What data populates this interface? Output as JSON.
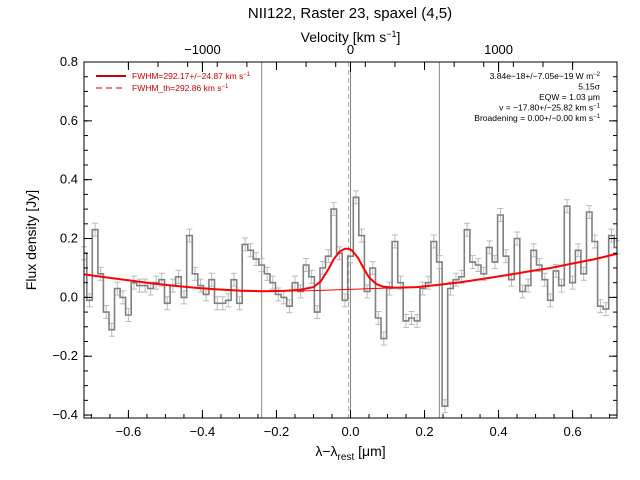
{
  "chart_data": {
    "type": "line",
    "title": "NII122, Raster 23, spaxel (4,5)",
    "xlabel": "λ−λrest [μm]",
    "xlabel_parts": {
      "main": "λ−λ",
      "sub": "rest",
      "unit": " [μm]"
    },
    "ylabel": "Flux density [Jy]",
    "top_xlabel": "Velocity [km s⁻¹]",
    "top_xlabel_parts": {
      "main": "Velocity [km s",
      "sup": "−1",
      "end": "]"
    },
    "xlim": [
      -0.72,
      0.72
    ],
    "ylim": [
      -0.41,
      0.8
    ],
    "x_ticks": [
      -0.6,
      -0.4,
      -0.2,
      0.0,
      0.2,
      0.4,
      0.6
    ],
    "x_tick_labels": [
      "−0.6",
      "−0.4",
      "−0.2",
      "0.0",
      "0.2",
      "0.4",
      "0.6"
    ],
    "y_ticks": [
      -0.4,
      -0.2,
      0.0,
      0.2,
      0.4,
      0.6,
      0.8
    ],
    "y_tick_labels": [
      "−0.4",
      "−0.2",
      "0.0",
      "0.2",
      "0.4",
      "0.6",
      "0.8"
    ],
    "top_x_ticks_um": [
      -0.4,
      0.0,
      0.4
    ],
    "top_x_tick_labels": [
      "−1000",
      "0",
      "1000"
    ],
    "vertical_lines": [
      -0.24,
      0.0,
      0.24
    ],
    "dashed_line": -0.005,
    "series": [
      {
        "name": "observed spectrum",
        "style": "step",
        "color": "#808080",
        "x": [
          -0.72,
          -0.705,
          -0.69,
          -0.675,
          -0.66,
          -0.645,
          -0.63,
          -0.615,
          -0.6,
          -0.585,
          -0.57,
          -0.555,
          -0.54,
          -0.525,
          -0.51,
          -0.495,
          -0.48,
          -0.465,
          -0.45,
          -0.435,
          -0.42,
          -0.405,
          -0.39,
          -0.375,
          -0.36,
          -0.345,
          -0.33,
          -0.315,
          -0.3,
          -0.285,
          -0.27,
          -0.255,
          -0.24,
          -0.225,
          -0.21,
          -0.195,
          -0.18,
          -0.165,
          -0.15,
          -0.135,
          -0.12,
          -0.105,
          -0.09,
          -0.075,
          -0.06,
          -0.045,
          -0.03,
          -0.015,
          0.0,
          0.015,
          0.03,
          0.045,
          0.06,
          0.075,
          0.09,
          0.105,
          0.12,
          0.135,
          0.15,
          0.165,
          0.18,
          0.195,
          0.21,
          0.225,
          0.24,
          0.255,
          0.27,
          0.285,
          0.3,
          0.315,
          0.33,
          0.345,
          0.36,
          0.375,
          0.39,
          0.405,
          0.42,
          0.435,
          0.45,
          0.465,
          0.48,
          0.495,
          0.51,
          0.525,
          0.54,
          0.555,
          0.57,
          0.585,
          0.6,
          0.615,
          0.63,
          0.645,
          0.66,
          0.675,
          0.69,
          0.705,
          0.72
        ],
        "y": [
          0.15,
          -0.01,
          0.23,
          0.08,
          -0.05,
          -0.11,
          0.03,
          0.0,
          -0.06,
          0.05,
          0.04,
          0.04,
          0.03,
          0.05,
          0.06,
          -0.02,
          0.04,
          0.07,
          0.0,
          0.21,
          0.08,
          0.04,
          0.01,
          0.06,
          -0.02,
          -0.02,
          -0.01,
          0.06,
          -0.02,
          0.18,
          0.16,
          0.13,
          0.11,
          0.08,
          0.05,
          0.01,
          0.0,
          -0.03,
          0.05,
          0.02,
          0.11,
          0.07,
          -0.05,
          0.1,
          0.14,
          0.3,
          0.15,
          -0.01,
          0.14,
          0.34,
          0.21,
          0.02,
          0.1,
          -0.07,
          -0.14,
          0.03,
          0.19,
          0.05,
          -0.08,
          -0.07,
          -0.08,
          0.03,
          0.05,
          0.19,
          0.12,
          -0.37,
          0.03,
          0.06,
          0.07,
          0.23,
          0.12,
          0.11,
          0.08,
          0.17,
          0.12,
          0.28,
          0.14,
          0.06,
          0.2,
          0.02,
          0.04,
          0.16,
          0.11,
          0.06,
          -0.01,
          0.09,
          0.04,
          0.31,
          0.05,
          0.16,
          0.08,
          0.29,
          0.19,
          -0.03,
          -0.04,
          0.21,
          0.17
        ]
      },
      {
        "name": "fit",
        "style": "line",
        "color": "#ff0000",
        "x": [
          -0.72,
          -0.66,
          -0.6,
          -0.54,
          -0.48,
          -0.42,
          -0.36,
          -0.3,
          -0.24,
          -0.18,
          -0.14,
          -0.1,
          -0.08,
          -0.06,
          -0.045,
          -0.03,
          -0.015,
          -0.005,
          0.005,
          0.02,
          0.035,
          0.05,
          0.07,
          0.09,
          0.12,
          0.18,
          0.24,
          0.3,
          0.36,
          0.42,
          0.48,
          0.54,
          0.6,
          0.66,
          0.72
        ],
        "y": [
          0.078,
          0.068,
          0.058,
          0.048,
          0.04,
          0.033,
          0.027,
          0.023,
          0.021,
          0.022,
          0.025,
          0.035,
          0.055,
          0.095,
          0.13,
          0.155,
          0.165,
          0.165,
          0.158,
          0.135,
          0.1,
          0.068,
          0.045,
          0.036,
          0.033,
          0.035,
          0.043,
          0.052,
          0.063,
          0.075,
          0.088,
          0.1,
          0.115,
          0.13,
          0.148
        ]
      },
      {
        "name": "baseline",
        "style": "line",
        "color": "#ff0000",
        "x": [
          -0.3,
          -0.1,
          0.1
        ],
        "y": [
          0.021,
          0.023,
          0.032
        ]
      }
    ],
    "legend": {
      "placement": "top-left",
      "entries": [
        {
          "label": "FWHM=292.17+/−24.87 km s⁻¹",
          "main": "FWHM=292.17+/−24.87 km s",
          "sup": "−1",
          "style": "solid",
          "color": "#cc0000"
        },
        {
          "label": "FWHM_th=292.86 km s⁻¹",
          "main": "FWHM_th=292.86 km s",
          "sup": "−1",
          "style": "dashed",
          "color": "#cc0000"
        }
      ]
    },
    "annotations": [
      {
        "main": "3.84e−18+/−7.05e−19 W m",
        "sup": "−2"
      },
      {
        "main": "5.15σ",
        "sup": ""
      },
      {
        "main": "EQW = 1.03 μm",
        "sup": ""
      },
      {
        "main": "v = −17.80+/−25.82 km s",
        "sup": "−1"
      },
      {
        "main": "Broadening = 0.00+/−0.00 km s",
        "sup": "−1"
      }
    ]
  }
}
